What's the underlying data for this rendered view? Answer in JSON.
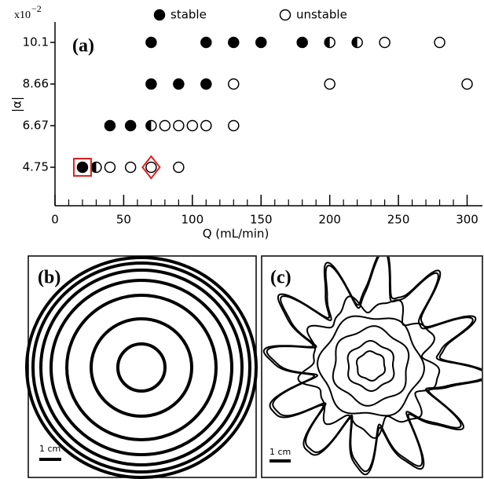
{
  "chart_data": {
    "type": "scatter",
    "y_multiplier": "x10",
    "y_multiplier_exp": "−2",
    "panel_label": "(a)",
    "x_label": "Q (mL/min)",
    "y_label": "|α|",
    "xlim": [
      0,
      310
    ],
    "xticks": [
      0,
      50,
      100,
      150,
      200,
      250,
      300
    ],
    "xminorticks": [
      10,
      20,
      30,
      40,
      60,
      70,
      80,
      90,
      110,
      120,
      130,
      140,
      160,
      170,
      180,
      190,
      210,
      220,
      230,
      240,
      260,
      270,
      280,
      290
    ],
    "yticks": [
      4.75,
      6.67,
      8.66,
      10.1
    ],
    "legend": "top",
    "series": [
      {
        "name": "stable",
        "marker": "filled",
        "color": "#000000",
        "x": [
          70,
          110,
          130,
          150,
          180,
          70,
          90,
          110,
          40,
          55,
          20
        ],
        "y": [
          10.1,
          10.1,
          10.1,
          10.1,
          10.1,
          8.66,
          8.66,
          8.66,
          6.67,
          6.67,
          4.75
        ]
      },
      {
        "name": "unstable",
        "marker": "open",
        "color": "#000000",
        "x": [
          240,
          280,
          130,
          200,
          300,
          80,
          90,
          100,
          110,
          130,
          40,
          55,
          70,
          90
        ],
        "y": [
          10.1,
          10.1,
          8.66,
          8.66,
          8.66,
          6.67,
          6.67,
          6.67,
          6.67,
          6.67,
          4.75,
          4.75,
          4.75,
          4.75
        ]
      },
      {
        "marker": "half",
        "color": "#000000",
        "x": [
          200,
          220,
          70,
          30
        ],
        "y": [
          10.1,
          10.1,
          6.67,
          4.75
        ]
      }
    ],
    "highlights": [
      {
        "shape": "square",
        "color": "#e02020",
        "x": 20,
        "y": 4.75
      },
      {
        "shape": "diamond",
        "color": "#e02020",
        "x": 70,
        "y": 4.75
      }
    ]
  },
  "panels": {
    "b": {
      "label": "(b)",
      "scale": "1 cm"
    },
    "c": {
      "label": "(c)",
      "scale": "1 cm"
    }
  }
}
